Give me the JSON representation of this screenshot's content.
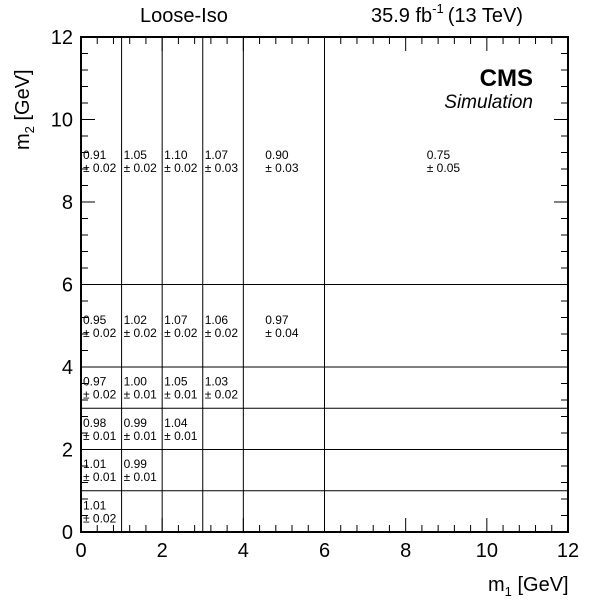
{
  "header": {
    "left": "Loose-Iso",
    "lumi_value": "35.9 fb",
    "lumi_exp": "-1",
    "energy": "(13 TeV)"
  },
  "brand": {
    "cms": "CMS",
    "simulation": "Simulation"
  },
  "axes": {
    "x_base": "m",
    "x_sub": "1",
    "x_unit": " [GeV]",
    "y_base": "m",
    "y_sub": "2",
    "y_unit": " [GeV]"
  },
  "chart_data": {
    "type": "heatmap",
    "title": "Loose-Iso",
    "xlabel": "m1 [GeV]",
    "ylabel": "m2 [GeV]",
    "xlim": [
      0,
      12
    ],
    "ylim": [
      0,
      12
    ],
    "x_ticks": [
      "0",
      "2",
      "4",
      "6",
      "8",
      "10",
      "12"
    ],
    "y_ticks": [
      "0",
      "2",
      "4",
      "6",
      "8",
      "10",
      "12"
    ],
    "x_bin_edges": [
      0,
      1,
      2,
      3,
      4,
      6,
      12
    ],
    "y_bin_edges": [
      0,
      1,
      2,
      3,
      4,
      6,
      12
    ],
    "cells": [
      {
        "x": [
          0,
          1
        ],
        "y": [
          0,
          1
        ],
        "value": "1.01",
        "error": "± 0.02"
      },
      {
        "x": [
          0,
          1
        ],
        "y": [
          1,
          2
        ],
        "value": "1.01",
        "error": "± 0.01"
      },
      {
        "x": [
          1,
          2
        ],
        "y": [
          1,
          2
        ],
        "value": "0.99",
        "error": "± 0.01"
      },
      {
        "x": [
          0,
          1
        ],
        "y": [
          2,
          3
        ],
        "value": "0.98",
        "error": "± 0.01"
      },
      {
        "x": [
          1,
          2
        ],
        "y": [
          2,
          3
        ],
        "value": "0.99",
        "error": "± 0.01"
      },
      {
        "x": [
          2,
          3
        ],
        "y": [
          2,
          3
        ],
        "value": "1.04",
        "error": "± 0.01"
      },
      {
        "x": [
          0,
          1
        ],
        "y": [
          3,
          4
        ],
        "value": "0.97",
        "error": "± 0.02"
      },
      {
        "x": [
          1,
          2
        ],
        "y": [
          3,
          4
        ],
        "value": "1.00",
        "error": "± 0.01"
      },
      {
        "x": [
          2,
          3
        ],
        "y": [
          3,
          4
        ],
        "value": "1.05",
        "error": "± 0.01"
      },
      {
        "x": [
          3,
          4
        ],
        "y": [
          3,
          4
        ],
        "value": "1.03",
        "error": "± 0.02"
      },
      {
        "x": [
          0,
          1
        ],
        "y": [
          4,
          6
        ],
        "value": "0.95",
        "error": "± 0.02"
      },
      {
        "x": [
          1,
          2
        ],
        "y": [
          4,
          6
        ],
        "value": "1.02",
        "error": "± 0.02"
      },
      {
        "x": [
          2,
          3
        ],
        "y": [
          4,
          6
        ],
        "value": "1.07",
        "error": "± 0.02"
      },
      {
        "x": [
          3,
          4
        ],
        "y": [
          4,
          6
        ],
        "value": "1.06",
        "error": "± 0.02"
      },
      {
        "x": [
          4,
          6
        ],
        "y": [
          4,
          6
        ],
        "value": "0.97",
        "error": "± 0.04"
      },
      {
        "x": [
          0,
          1
        ],
        "y": [
          6,
          12
        ],
        "value": "0.91",
        "error": "± 0.02"
      },
      {
        "x": [
          1,
          2
        ],
        "y": [
          6,
          12
        ],
        "value": "1.05",
        "error": "± 0.02"
      },
      {
        "x": [
          2,
          3
        ],
        "y": [
          6,
          12
        ],
        "value": "1.10",
        "error": "± 0.02"
      },
      {
        "x": [
          3,
          4
        ],
        "y": [
          6,
          12
        ],
        "value": "1.07",
        "error": "± 0.03"
      },
      {
        "x": [
          4,
          6
        ],
        "y": [
          6,
          12
        ],
        "value": "0.90",
        "error": "± 0.03"
      },
      {
        "x": [
          6,
          12
        ],
        "y": [
          6,
          12
        ],
        "value": "0.75",
        "error": "± 0.05"
      }
    ]
  }
}
